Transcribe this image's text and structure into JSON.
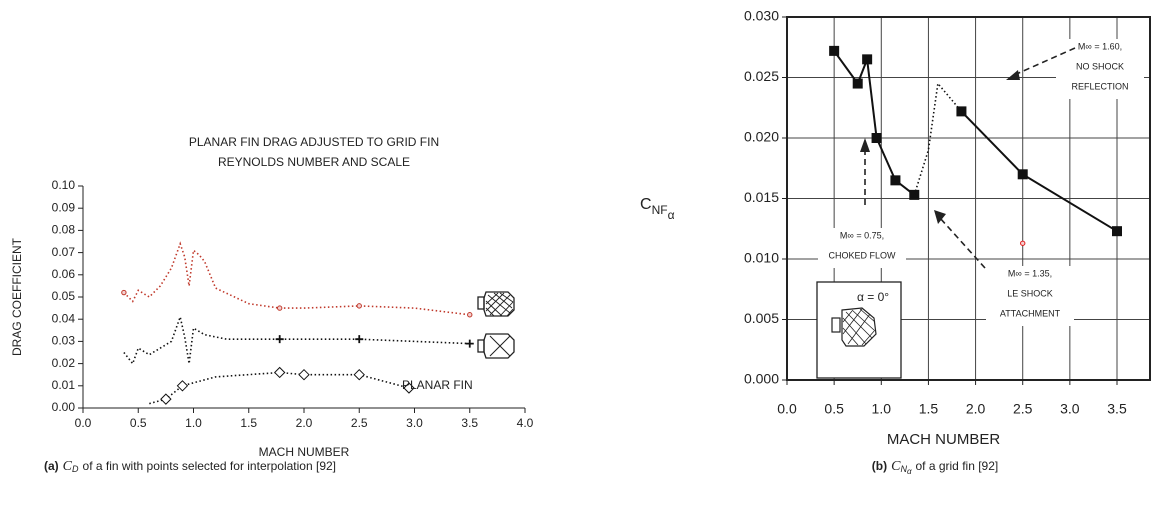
{
  "chart_data": [
    {
      "type": "line",
      "title_lines": [
        "PLANAR FIN DRAG ADJUSTED TO GRID FIN",
        "REYNOLDS NUMBER AND SCALE"
      ],
      "xlabel": "MACH NUMBER",
      "ylabel": "DRAG COEFFICIENT",
      "xlim": [
        0,
        4
      ],
      "ylim": [
        0,
        0.1
      ],
      "xticks": [
        {
          "value": 0,
          "label": "0.0"
        },
        0.5,
        {
          "value": 1,
          "label": "1.0"
        },
        1.5,
        {
          "value": 2,
          "label": "2.0"
        },
        2.5,
        {
          "value": 3,
          "label": "3.0"
        },
        3.5,
        {
          "value": 4,
          "label": "4.0"
        }
      ],
      "yticks": [
        {
          "value": 0,
          "label": "0.00"
        },
        0.01,
        0.02,
        0.03,
        0.04,
        0.05,
        0.06,
        0.07,
        0.08,
        0.09,
        {
          "value": 0.1,
          "label": "0.10"
        }
      ],
      "grid": false,
      "series": [
        {
          "color": "#c0392b",
          "style": "dotted",
          "marker": "none",
          "x": [
            0.37,
            0.45,
            0.5,
            0.6,
            0.7,
            0.8,
            0.88,
            0.92,
            0.96,
            1.0,
            1.05,
            1.1,
            1.2,
            1.5,
            1.78,
            2.0,
            2.5,
            3.0,
            3.5
          ],
          "values": [
            0.052,
            0.048,
            0.053,
            0.05,
            0.055,
            0.063,
            0.074,
            0.068,
            0.055,
            0.071,
            0.069,
            0.066,
            0.054,
            0.047,
            0.045,
            0.045,
            0.046,
            0.045,
            0.042
          ]
        },
        {
          "color": "#c0392b",
          "style": "none",
          "marker": "dot",
          "x": [
            0.37,
            1.78,
            2.5,
            3.5
          ],
          "values": [
            0.052,
            0.045,
            0.046,
            0.042
          ]
        },
        {
          "color": "#111111",
          "style": "dotted",
          "marker": "none",
          "x": [
            0.37,
            0.45,
            0.5,
            0.6,
            0.7,
            0.8,
            0.88,
            0.92,
            0.96,
            1.0,
            1.1,
            1.3,
            1.78,
            2.5,
            3.5
          ],
          "values": [
            0.025,
            0.02,
            0.027,
            0.024,
            0.027,
            0.03,
            0.041,
            0.032,
            0.02,
            0.036,
            0.033,
            0.031,
            0.031,
            0.031,
            0.029
          ]
        },
        {
          "color": "#111111",
          "style": "none",
          "marker": "cross",
          "x": [
            1.78,
            2.5,
            3.5
          ],
          "values": [
            0.031,
            0.031,
            0.029
          ]
        },
        {
          "color": "#111111",
          "style": "dotted",
          "marker": "none",
          "x": [
            0.6,
            0.75,
            0.9,
            1.2,
            1.78,
            2.0,
            2.5,
            2.95
          ],
          "values": [
            0.002,
            0.004,
            0.01,
            0.014,
            0.016,
            0.015,
            0.015,
            0.009
          ]
        },
        {
          "color": "#111111",
          "style": "none",
          "marker": "diamond",
          "x": [
            0.75,
            0.9,
            1.78,
            2.0,
            2.5,
            2.95
          ],
          "values": [
            0.004,
            0.01,
            0.016,
            0.015,
            0.015,
            0.009
          ]
        }
      ],
      "annotations": [
        {
          "lines": [
            "PLANAR FIN"
          ]
        }
      ],
      "caption": {
        "label": "(a)",
        "symbol": "C",
        "subscript": "D",
        "text": "of a fin with points selected for interpolation [92]"
      }
    },
    {
      "type": "line",
      "xlabel": "MACH NUMBER",
      "ylabel": {
        "symbol": "C",
        "subscript": "NF",
        "subsubscript": "α"
      },
      "xlim": [
        0,
        3.85
      ],
      "ylim": [
        0,
        0.03
      ],
      "xticks": [
        {
          "value": 0,
          "label": "0.0"
        },
        0.5,
        {
          "value": 1,
          "label": "1.0"
        },
        1.5,
        {
          "value": 2,
          "label": "2.0"
        },
        2.5,
        {
          "value": 3,
          "label": "3.0"
        },
        3.5
      ],
      "yticks": [
        {
          "value": 0,
          "label": "0.000"
        },
        0.005,
        {
          "value": 0.01,
          "label": "0.010"
        },
        0.015,
        {
          "value": 0.02,
          "label": "0.020"
        },
        0.025,
        {
          "value": 0.03,
          "label": "0.030"
        }
      ],
      "grid": true,
      "series": [
        {
          "color": "#111111",
          "style": "solid",
          "marker": "square",
          "x": [
            0.5,
            0.75,
            0.85,
            0.95,
            1.15,
            1.35,
            1.6,
            1.85,
            2.5,
            3.5
          ],
          "values": [
            0.0272,
            0.0245,
            0.0265,
            0.02,
            0.0165,
            0.0153,
            null,
            0.0222,
            0.017,
            0.0123
          ]
        },
        {
          "color": "#111111",
          "style": "dotted",
          "marker": "none",
          "x": [
            1.35,
            1.5,
            1.6,
            1.85
          ],
          "values": [
            0.0153,
            0.019,
            0.0245,
            0.0222
          ]
        },
        {
          "color": "#e02020",
          "style": "none",
          "marker": "dot",
          "x": [
            2.5
          ],
          "values": [
            0.0113
          ]
        }
      ],
      "annotations": [
        {
          "lines": [
            "M∞ = 1.60,",
            "NO SHOCK",
            "REFLECTION"
          ]
        },
        {
          "lines": [
            "M∞ = 0.75,",
            "CHOKED FLOW"
          ]
        },
        {
          "lines": [
            "M∞ = 1.35,",
            "LE SHOCK",
            "ATTACHMENT"
          ]
        },
        {
          "lines": [
            "α = 0°"
          ]
        }
      ],
      "caption": {
        "label": "(b)",
        "symbol": "C",
        "subscript": "N",
        "subsubscript": "α",
        "text": "of a grid fin [92]"
      }
    }
  ]
}
